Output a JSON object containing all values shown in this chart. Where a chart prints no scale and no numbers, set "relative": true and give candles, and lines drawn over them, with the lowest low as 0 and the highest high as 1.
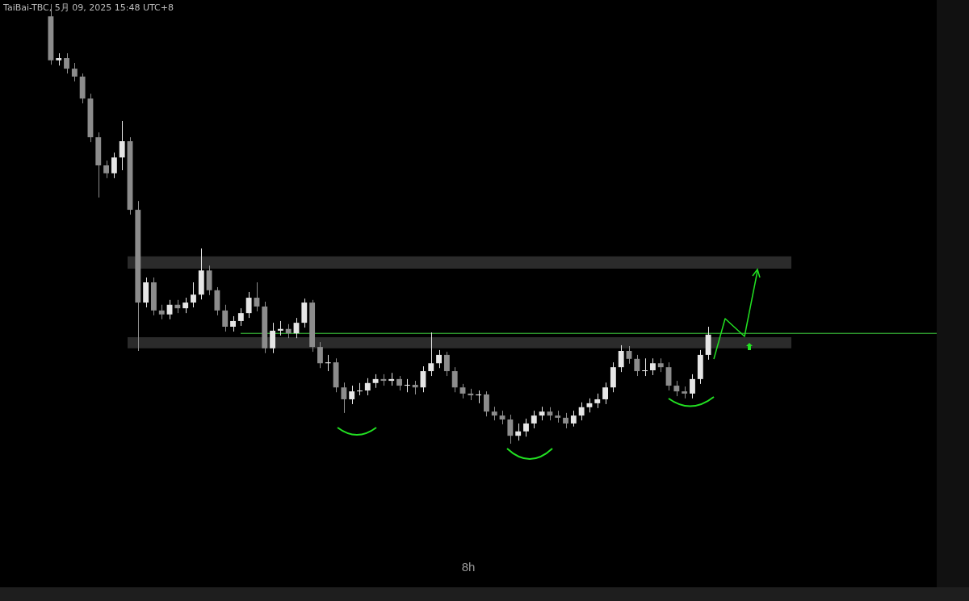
{
  "chart_data": {
    "type": "candlestick",
    "title": "8h",
    "relative": true,
    "colors": [
      "#8c8c8c",
      "#e6e6e6",
      "#8c8c8c",
      "#8c8c8c",
      "#8c8c8c",
      "#8c8c8c",
      "#8c8c8c",
      "#8c8c8c",
      "#e6e6e6",
      "#e6e6e6",
      "#8c8c8c",
      "#8c8c8c",
      "#e6e6e6",
      "#8c8c8c",
      "#8c8c8c",
      "#e6e6e6",
      "#8c8c8c",
      "#e6e6e6",
      "#e6e6e6",
      "#e6e6e6",
      "#8c8c8c",
      "#8c8c8c",
      "#8c8c8c",
      "#e6e6e6",
      "#e6e6e6",
      "#e6e6e6",
      "#8c8c8c",
      "#8c8c8c",
      "#e6e6e6",
      "#e6e6e6",
      "#8c8c8c",
      "#e6e6e6",
      "#e6e6e6",
      "#8c8c8c",
      "#8c8c8c",
      "#e6e6e6",
      "#8c8c8c",
      "#8c8c8c",
      "#e6e6e6",
      "#e6e6e6",
      "#e6e6e6",
      "#e6e6e6",
      "#8c8c8c",
      "#e6e6e6",
      "#8c8c8c",
      "#e6e6e6",
      "#8c8c8c",
      "#e6e6e6",
      "#e6e6e6",
      "#e6e6e6",
      "#8c8c8c",
      "#8c8c8c",
      "#8c8c8c",
      "#8c8c8c",
      "#e6e6e6",
      "#8c8c8c",
      "#8c8c8c",
      "#8c8c8c",
      "#8c8c8c",
      "#e6e6e6",
      "#e6e6e6",
      "#e6e6e6",
      "#e6e6e6",
      "#8c8c8c",
      "#8c8c8c",
      "#8c8c8c",
      "#e6e6e6",
      "#e6e6e6",
      "#e6e6e6",
      "#e6e6e6",
      "#e6e6e6",
      "#e6e6e6",
      "#e6e6e6",
      "#8c8c8c",
      "#8c8c8c",
      "#e6e6e6",
      "#e6e6e6",
      "#8c8c8c",
      "#8c8c8c",
      "#8c8c8c",
      "#8c8c8c",
      "#e6e6e6",
      "#e6e6e6",
      "#e6e6e6"
    ],
    "annotations": [
      "TaiBai-TBC, 5月 09, 2025 15:48 UTC+8"
    ],
    "categories": [
      null,
      null,
      null,
      null,
      null,
      null,
      null,
      null,
      null,
      null,
      null,
      null,
      null,
      null,
      null,
      null,
      null,
      null,
      null,
      null,
      null,
      null,
      null,
      null,
      null,
      null,
      null,
      null,
      null,
      null,
      null,
      null,
      null,
      null,
      null,
      null,
      null,
      null,
      null,
      null,
      null,
      null,
      null,
      null,
      null,
      null,
      null,
      null,
      null,
      null,
      null,
      null,
      null,
      null,
      null,
      null,
      null,
      null,
      null,
      null,
      null,
      null,
      null,
      null,
      null,
      null,
      null,
      null,
      null,
      null,
      null,
      null,
      null,
      null,
      null,
      null,
      null,
      null,
      null,
      null,
      null,
      null,
      null,
      null
    ],
    "ohlc": [
      [
        0.972,
        1.0,
        0.862,
        0.872
      ],
      [
        0.872,
        0.888,
        0.86,
        0.877
      ],
      [
        0.877,
        0.888,
        0.842,
        0.853
      ],
      [
        0.853,
        0.866,
        0.824,
        0.835
      ],
      [
        0.835,
        0.842,
        0.774,
        0.785
      ],
      [
        0.785,
        0.796,
        0.686,
        0.697
      ],
      [
        0.697,
        0.708,
        0.56,
        0.633
      ],
      [
        0.633,
        0.644,
        0.604,
        0.615
      ],
      [
        0.615,
        0.662,
        0.604,
        0.651
      ],
      [
        0.651,
        0.734,
        0.622,
        0.688
      ],
      [
        0.688,
        0.697,
        0.521,
        0.532
      ],
      [
        0.532,
        0.552,
        0.211,
        0.321
      ],
      [
        0.321,
        0.378,
        0.31,
        0.367
      ],
      [
        0.367,
        0.378,
        0.292,
        0.303
      ],
      [
        0.303,
        0.316,
        0.283,
        0.294
      ],
      [
        0.294,
        0.327,
        0.283,
        0.316
      ],
      [
        0.316,
        0.327,
        0.297,
        0.308
      ],
      [
        0.308,
        0.332,
        0.297,
        0.321
      ],
      [
        0.321,
        0.367,
        0.31,
        0.339
      ],
      [
        0.339,
        0.444,
        0.328,
        0.394
      ],
      [
        0.394,
        0.405,
        0.338,
        0.349
      ],
      [
        0.349,
        0.356,
        0.292,
        0.303
      ],
      [
        0.303,
        0.316,
        0.255,
        0.266
      ],
      [
        0.266,
        0.29,
        0.255,
        0.279
      ],
      [
        0.279,
        0.308,
        0.268,
        0.297
      ],
      [
        0.297,
        0.345,
        0.286,
        0.332
      ],
      [
        0.332,
        0.367,
        0.301,
        0.312
      ],
      [
        0.312,
        0.323,
        0.206,
        0.217
      ],
      [
        0.217,
        0.275,
        0.206,
        0.257
      ],
      [
        0.257,
        0.279,
        0.246,
        0.261
      ],
      [
        0.261,
        0.272,
        0.24,
        0.251
      ],
      [
        0.251,
        0.286,
        0.24,
        0.275
      ],
      [
        0.275,
        0.33,
        0.264,
        0.321
      ],
      [
        0.321,
        0.327,
        0.209,
        0.22
      ],
      [
        0.22,
        0.231,
        0.172,
        0.183
      ],
      [
        0.183,
        0.202,
        0.165,
        0.185
      ],
      [
        0.185,
        0.194,
        0.117,
        0.128
      ],
      [
        0.128,
        0.139,
        0.07,
        0.101
      ],
      [
        0.101,
        0.132,
        0.09,
        0.119
      ],
      [
        0.119,
        0.138,
        0.11,
        0.121
      ],
      [
        0.121,
        0.149,
        0.11,
        0.138
      ],
      [
        0.138,
        0.158,
        0.127,
        0.147
      ],
      [
        0.147,
        0.158,
        0.132,
        0.143
      ],
      [
        0.143,
        0.161,
        0.132,
        0.147
      ],
      [
        0.147,
        0.154,
        0.121,
        0.132
      ],
      [
        0.132,
        0.147,
        0.117,
        0.134
      ],
      [
        0.134,
        0.143,
        0.112,
        0.128
      ],
      [
        0.128,
        0.176,
        0.117,
        0.165
      ],
      [
        0.165,
        0.253,
        0.154,
        0.183
      ],
      [
        0.183,
        0.213,
        0.172,
        0.202
      ],
      [
        0.202,
        0.209,
        0.154,
        0.165
      ],
      [
        0.165,
        0.174,
        0.117,
        0.128
      ],
      [
        0.128,
        0.136,
        0.103,
        0.114
      ],
      [
        0.114,
        0.125,
        0.099,
        0.11
      ],
      [
        0.11,
        0.121,
        0.092,
        0.112
      ],
      [
        0.112,
        0.119,
        0.062,
        0.073
      ],
      [
        0.073,
        0.084,
        0.053,
        0.064
      ],
      [
        0.064,
        0.075,
        0.044,
        0.055
      ],
      [
        0.055,
        0.066,
        0.0,
        0.018
      ],
      [
        0.018,
        0.046,
        0.007,
        0.028
      ],
      [
        0.028,
        0.057,
        0.016,
        0.046
      ],
      [
        0.046,
        0.075,
        0.035,
        0.064
      ],
      [
        0.064,
        0.084,
        0.053,
        0.073
      ],
      [
        0.073,
        0.083,
        0.053,
        0.064
      ],
      [
        0.064,
        0.075,
        0.048,
        0.059
      ],
      [
        0.059,
        0.07,
        0.035,
        0.046
      ],
      [
        0.046,
        0.075,
        0.039,
        0.064
      ],
      [
        0.064,
        0.094,
        0.053,
        0.083
      ],
      [
        0.083,
        0.103,
        0.071,
        0.092
      ],
      [
        0.092,
        0.114,
        0.081,
        0.101
      ],
      [
        0.101,
        0.139,
        0.09,
        0.128
      ],
      [
        0.128,
        0.185,
        0.117,
        0.174
      ],
      [
        0.174,
        0.224,
        0.163,
        0.211
      ],
      [
        0.211,
        0.222,
        0.182,
        0.193
      ],
      [
        0.193,
        0.202,
        0.154,
        0.165
      ],
      [
        0.165,
        0.194,
        0.154,
        0.167
      ],
      [
        0.167,
        0.194,
        0.156,
        0.183
      ],
      [
        0.183,
        0.194,
        0.163,
        0.174
      ],
      [
        0.174,
        0.185,
        0.121,
        0.132
      ],
      [
        0.132,
        0.143,
        0.108,
        0.119
      ],
      [
        0.119,
        0.13,
        0.103,
        0.114
      ],
      [
        0.114,
        0.158,
        0.103,
        0.147
      ],
      [
        0.147,
        0.213,
        0.136,
        0.202
      ],
      [
        0.202,
        0.266,
        0.191,
        0.248
      ]
    ],
    "bands": [
      {
        "axis": "y",
        "from": 0.398,
        "to": 0.426,
        "color": "#2b2b2b"
      },
      {
        "axis": "y",
        "from": 0.217,
        "to": 0.242,
        "color": "#2b2b2b"
      }
    ],
    "ref_lines": [
      {
        "axis": "y",
        "value": 0.251,
        "color": "#3fd23f"
      }
    ]
  }
}
